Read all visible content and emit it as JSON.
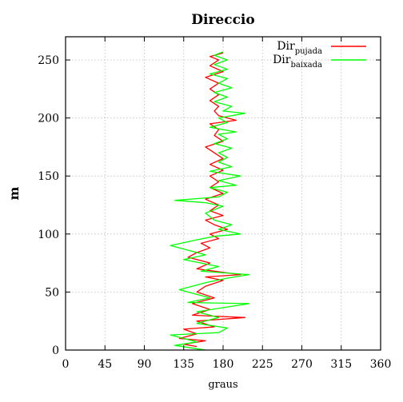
{
  "chart_data": {
    "type": "line",
    "title": "Direccio",
    "xlabel": "graus",
    "ylabel": "m",
    "xlim": [
      0,
      360
    ],
    "ylim": [
      0,
      270
    ],
    "xticks": [
      0,
      45,
      90,
      135,
      180,
      225,
      270,
      315,
      360
    ],
    "yticks": [
      0,
      50,
      100,
      150,
      200,
      250
    ],
    "grid": true,
    "legend_position": "top-right",
    "series": [
      {
        "name_main": "Dir",
        "name_sub": "pujada",
        "color": "#ff0000",
        "points": [
          [
            150,
            3
          ],
          [
            135,
            5
          ],
          [
            160,
            8
          ],
          [
            130,
            10
          ],
          [
            150,
            14
          ],
          [
            135,
            18
          ],
          [
            170,
            20
          ],
          [
            150,
            25
          ],
          [
            205,
            28
          ],
          [
            145,
            30
          ],
          [
            165,
            35
          ],
          [
            145,
            40
          ],
          [
            170,
            45
          ],
          [
            150,
            50
          ],
          [
            160,
            55
          ],
          [
            180,
            60
          ],
          [
            160,
            63
          ],
          [
            200,
            65
          ],
          [
            150,
            70
          ],
          [
            165,
            75
          ],
          [
            140,
            80
          ],
          [
            150,
            84
          ],
          [
            165,
            88
          ],
          [
            155,
            92
          ],
          [
            175,
            96
          ],
          [
            165,
            100
          ],
          [
            185,
            104
          ],
          [
            170,
            108
          ],
          [
            160,
            112
          ],
          [
            180,
            116
          ],
          [
            165,
            120
          ],
          [
            175,
            125
          ],
          [
            160,
            130
          ],
          [
            180,
            135
          ],
          [
            165,
            140
          ],
          [
            175,
            145
          ],
          [
            165,
            150
          ],
          [
            180,
            155
          ],
          [
            165,
            160
          ],
          [
            180,
            165
          ],
          [
            170,
            170
          ],
          [
            160,
            175
          ],
          [
            180,
            180
          ],
          [
            170,
            185
          ],
          [
            175,
            190
          ],
          [
            165,
            195
          ],
          [
            195,
            198
          ],
          [
            175,
            202
          ],
          [
            170,
            206
          ],
          [
            175,
            210
          ],
          [
            165,
            215
          ],
          [
            175,
            220
          ],
          [
            165,
            225
          ],
          [
            175,
            230
          ],
          [
            160,
            235
          ],
          [
            180,
            240
          ],
          [
            165,
            245
          ],
          [
            175,
            250
          ],
          [
            165,
            253
          ],
          [
            180,
            256
          ]
        ]
      },
      {
        "name_main": "Dir",
        "name_sub": "baixada",
        "color": "#00ff00",
        "points": [
          [
            160,
            0
          ],
          [
            125,
            4
          ],
          [
            150,
            7
          ],
          [
            120,
            13
          ],
          [
            175,
            15
          ],
          [
            185,
            19
          ],
          [
            150,
            23
          ],
          [
            175,
            28
          ],
          [
            150,
            33
          ],
          [
            210,
            40
          ],
          [
            140,
            41
          ],
          [
            165,
            45
          ],
          [
            130,
            52
          ],
          [
            160,
            58
          ],
          [
            185,
            62
          ],
          [
            210,
            65
          ],
          [
            155,
            68
          ],
          [
            175,
            72
          ],
          [
            135,
            78
          ],
          [
            160,
            82
          ],
          [
            120,
            90
          ],
          [
            150,
            95
          ],
          [
            170,
            98
          ],
          [
            200,
            100
          ],
          [
            175,
            104
          ],
          [
            190,
            108
          ],
          [
            170,
            112
          ],
          [
            160,
            118
          ],
          [
            180,
            124
          ],
          [
            160,
            127
          ],
          [
            125,
            129
          ],
          [
            175,
            132
          ],
          [
            185,
            136
          ],
          [
            165,
            140
          ],
          [
            195,
            142
          ],
          [
            175,
            146
          ],
          [
            200,
            150
          ],
          [
            165,
            154
          ],
          [
            190,
            158
          ],
          [
            175,
            162
          ],
          [
            185,
            166
          ],
          [
            175,
            170
          ],
          [
            190,
            174
          ],
          [
            170,
            178
          ],
          [
            185,
            182
          ],
          [
            175,
            186
          ],
          [
            195,
            188
          ],
          [
            165,
            192
          ],
          [
            185,
            196
          ],
          [
            175,
            200
          ],
          [
            205,
            204
          ],
          [
            180,
            206
          ],
          [
            190,
            210
          ],
          [
            170,
            214
          ],
          [
            185,
            218
          ],
          [
            170,
            222
          ],
          [
            190,
            226
          ],
          [
            175,
            230
          ],
          [
            185,
            234
          ],
          [
            165,
            238
          ],
          [
            185,
            242
          ],
          [
            170,
            246
          ],
          [
            185,
            250
          ],
          [
            170,
            254
          ],
          [
            180,
            257
          ]
        ]
      }
    ]
  }
}
